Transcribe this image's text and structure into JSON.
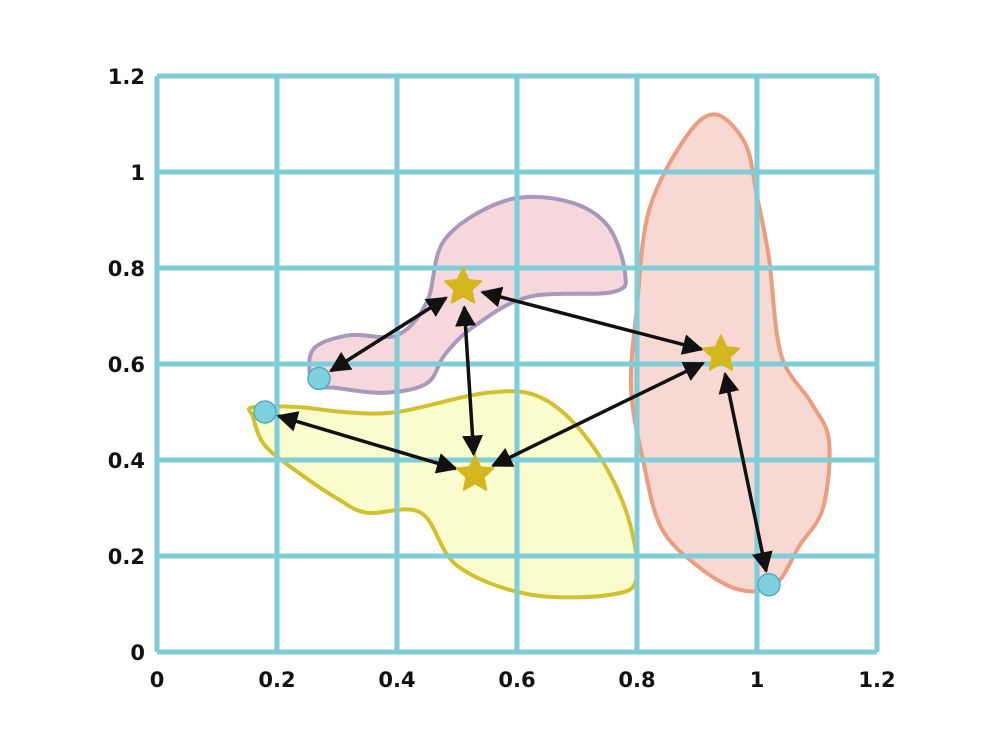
{
  "chart_data": {
    "type": "scatter",
    "title": "",
    "xlabel": "",
    "ylabel": "",
    "xlim": [
      0,
      1.2
    ],
    "ylim": [
      0,
      1.2
    ],
    "grid": true,
    "x_ticks": [
      {
        "value": 0,
        "label": "0"
      },
      {
        "value": 0.2,
        "label": "0.2"
      },
      {
        "value": 0.4,
        "label": "0.4"
      },
      {
        "value": 0.6,
        "label": "0.6"
      },
      {
        "value": 0.8,
        "label": "0.8"
      },
      {
        "value": 1,
        "label": "1"
      },
      {
        "value": 1.2,
        "label": "1.2"
      }
    ],
    "y_ticks": [
      {
        "value": 0,
        "label": "0"
      },
      {
        "value": 0.2,
        "label": "0.2"
      },
      {
        "value": 0.4,
        "label": "0.4"
      },
      {
        "value": 0.6,
        "label": "0.6"
      },
      {
        "value": 0.8,
        "label": "0.8"
      },
      {
        "value": 1,
        "label": "1"
      },
      {
        "value": 1.2,
        "label": "1.2"
      }
    ],
    "clusters": [
      {
        "id": "purple",
        "fill": "#f6d8dc",
        "stroke": "#a799bb",
        "outline": [
          [
            0.26,
            0.56
          ],
          [
            0.26,
            0.63
          ],
          [
            0.32,
            0.66
          ],
          [
            0.4,
            0.66
          ],
          [
            0.45,
            0.73
          ],
          [
            0.48,
            0.86
          ],
          [
            0.58,
            0.94
          ],
          [
            0.68,
            0.94
          ],
          [
            0.75,
            0.89
          ],
          [
            0.78,
            0.79
          ],
          [
            0.76,
            0.75
          ],
          [
            0.62,
            0.74
          ],
          [
            0.53,
            0.68
          ],
          [
            0.48,
            0.62
          ],
          [
            0.45,
            0.56
          ],
          [
            0.38,
            0.54
          ],
          [
            0.3,
            0.55
          ]
        ]
      },
      {
        "id": "yellow",
        "fill": "#fbfcce",
        "stroke": "#d2c12e",
        "outline": [
          [
            0.16,
            0.51
          ],
          [
            0.24,
            0.51
          ],
          [
            0.31,
            0.5
          ],
          [
            0.4,
            0.5
          ],
          [
            0.55,
            0.54
          ],
          [
            0.64,
            0.53
          ],
          [
            0.72,
            0.44
          ],
          [
            0.78,
            0.3
          ],
          [
            0.8,
            0.16
          ],
          [
            0.76,
            0.12
          ],
          [
            0.62,
            0.12
          ],
          [
            0.5,
            0.18
          ],
          [
            0.44,
            0.29
          ],
          [
            0.35,
            0.29
          ],
          [
            0.3,
            0.32
          ],
          [
            0.24,
            0.37
          ],
          [
            0.18,
            0.43
          ],
          [
            0.16,
            0.49
          ]
        ]
      },
      {
        "id": "orange",
        "fill": "#f7d8d2",
        "stroke": "#ec9c7f",
        "outline": [
          [
            0.93,
            1.12
          ],
          [
            0.98,
            1.06
          ],
          [
            1.0,
            0.95
          ],
          [
            1.02,
            0.82
          ],
          [
            1.04,
            0.62
          ],
          [
            1.09,
            0.52
          ],
          [
            1.12,
            0.44
          ],
          [
            1.11,
            0.3
          ],
          [
            1.07,
            0.22
          ],
          [
            1.03,
            0.14
          ],
          [
            0.97,
            0.13
          ],
          [
            0.9,
            0.18
          ],
          [
            0.84,
            0.26
          ],
          [
            0.81,
            0.4
          ],
          [
            0.79,
            0.55
          ],
          [
            0.8,
            0.72
          ],
          [
            0.82,
            0.92
          ],
          [
            0.88,
            1.07
          ]
        ]
      }
    ],
    "centers": [
      {
        "id": "c1",
        "x": 0.51,
        "y": 0.76
      },
      {
        "id": "c2",
        "x": 0.53,
        "y": 0.37
      },
      {
        "id": "c3",
        "x": 0.94,
        "y": 0.62
      }
    ],
    "points": [
      {
        "id": "p1",
        "x": 0.27,
        "y": 0.57
      },
      {
        "id": "p2",
        "x": 0.18,
        "y": 0.5
      },
      {
        "id": "p3",
        "x": 1.02,
        "y": 0.14
      }
    ],
    "edges": [
      {
        "from": "c1",
        "to": "p1"
      },
      {
        "from": "c1",
        "to": "c2"
      },
      {
        "from": "c1",
        "to": "c3"
      },
      {
        "from": "c2",
        "to": "p2"
      },
      {
        "from": "c2",
        "to": "c3"
      },
      {
        "from": "c3",
        "to": "p3"
      }
    ],
    "colors": {
      "grid": "#7ecdd8",
      "center_star": "#d4b61f",
      "point_fill": "#7fd0dd",
      "point_stroke": "#4aaec0",
      "arrow": "#111111"
    }
  }
}
